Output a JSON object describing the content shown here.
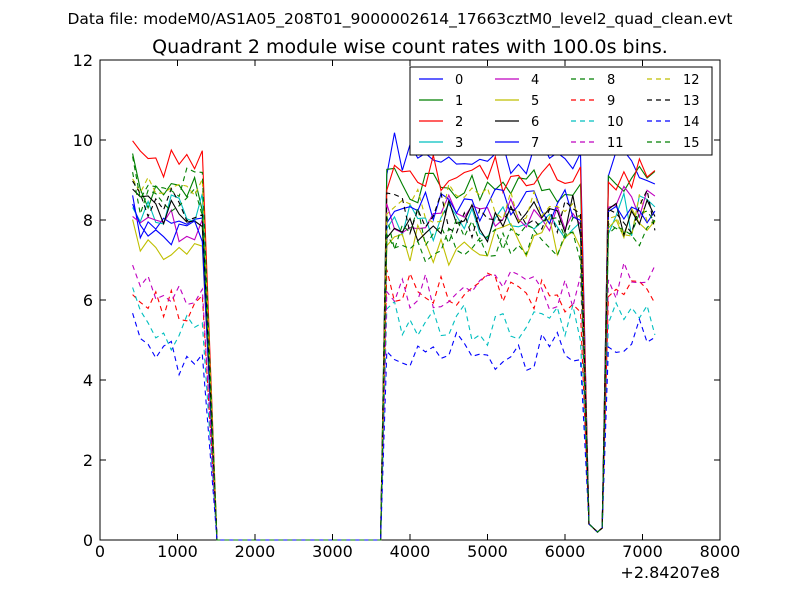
{
  "header": {
    "data_file": "Data file: modeM0/AS1A05_208T01_9000002614_17663cztM0_level2_quad_clean.evt"
  },
  "chart_data": {
    "type": "line",
    "title": "Quadrant 2 module wise count rates with 100.0s bins.",
    "xlabel": "",
    "ylabel": "",
    "x_offset_label": "+2.84207e8",
    "xlim": [
      0,
      8000
    ],
    "ylim": [
      0,
      12
    ],
    "x_ticks": [
      0,
      1000,
      2000,
      3000,
      4000,
      5000,
      6000,
      7000,
      8000
    ],
    "y_ticks": [
      0,
      2,
      4,
      6,
      8,
      10,
      12
    ],
    "legend_position": "top-right",
    "legend_columns": 4,
    "segments": [
      {
        "start": 420,
        "end": 1360
      },
      {
        "start": 3700,
        "end": 6270
      },
      {
        "start": 6560,
        "end": 7230
      }
    ],
    "gap_value": 0,
    "dip": {
      "x": 6420,
      "value": 0.2
    },
    "series": [
      {
        "name": "0",
        "color": "#0000ff",
        "dashed": false,
        "levels": [
          8.0,
          9.6,
          9.2
        ]
      },
      {
        "name": "1",
        "color": "#007f00",
        "dashed": false,
        "levels": [
          8.8,
          9.0,
          8.9
        ]
      },
      {
        "name": "2",
        "color": "#ff0000",
        "dashed": false,
        "levels": [
          9.3,
          9.2,
          9.0
        ]
      },
      {
        "name": "3",
        "color": "#00bfbf",
        "dashed": false,
        "levels": [
          8.2,
          8.0,
          8.1
        ]
      },
      {
        "name": "4",
        "color": "#bf00bf",
        "dashed": false,
        "levels": [
          8.0,
          8.2,
          8.3
        ]
      },
      {
        "name": "5",
        "color": "#bfbf00",
        "dashed": false,
        "levels": [
          7.4,
          7.5,
          7.8
        ]
      },
      {
        "name": "6",
        "color": "#000000",
        "dashed": false,
        "levels": [
          8.2,
          8.0,
          8.1
        ]
      },
      {
        "name": "7",
        "color": "#0000ff",
        "dashed": false,
        "levels": [
          7.8,
          8.4,
          8.0
        ]
      },
      {
        "name": "8",
        "color": "#007f00",
        "dashed": true,
        "levels": [
          8.4,
          7.8,
          8.0
        ]
      },
      {
        "name": "9",
        "color": "#ff0000",
        "dashed": true,
        "levels": [
          5.9,
          6.2,
          6.1
        ]
      },
      {
        "name": "10",
        "color": "#00bfbf",
        "dashed": true,
        "levels": [
          5.3,
          5.4,
          5.5
        ]
      },
      {
        "name": "11",
        "color": "#bf00bf",
        "dashed": true,
        "levels": [
          6.1,
          6.3,
          6.5
        ]
      },
      {
        "name": "12",
        "color": "#bfbf00",
        "dashed": true,
        "levels": [
          8.6,
          8.4,
          8.2
        ]
      },
      {
        "name": "13",
        "color": "#000000",
        "dashed": true,
        "levels": [
          8.5,
          8.1,
          8.3
        ]
      },
      {
        "name": "14",
        "color": "#0000ff",
        "dashed": true,
        "levels": [
          4.7,
          4.7,
          4.9
        ]
      },
      {
        "name": "15",
        "color": "#007f00",
        "dashed": true,
        "levels": [
          8.9,
          7.4,
          7.8
        ]
      }
    ]
  }
}
